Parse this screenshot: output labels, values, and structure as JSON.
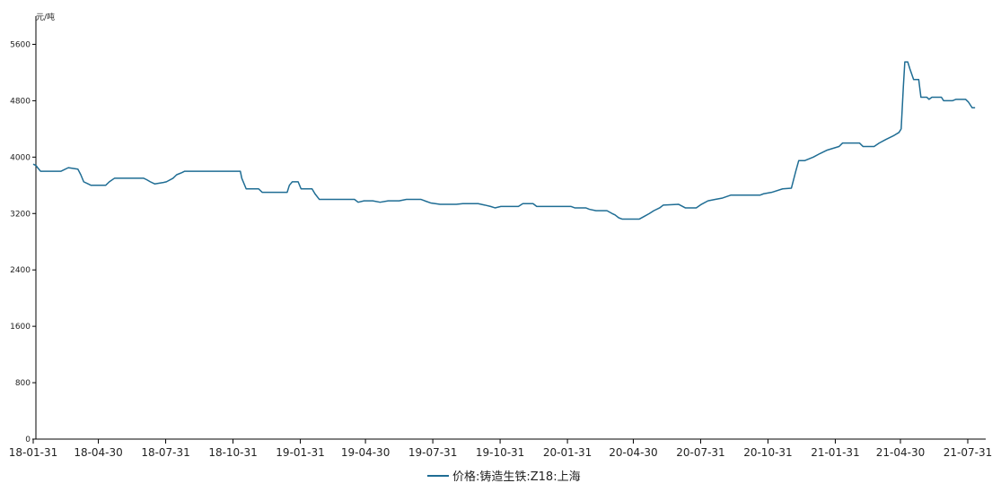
{
  "chart_data": {
    "type": "line",
    "y_unit": "元/吨",
    "ylim": [
      0,
      6000
    ],
    "y_ticks": [
      0,
      800,
      1600,
      2400,
      3200,
      4000,
      4800,
      5600
    ],
    "x_tick_labels": [
      "18-01-31",
      "18-04-30",
      "18-07-31",
      "18-10-31",
      "19-01-31",
      "19-04-30",
      "19-07-31",
      "19-10-31",
      "20-01-31",
      "20-04-30",
      "20-07-31",
      "20-10-31",
      "21-01-31",
      "21-04-30",
      "21-07-31"
    ],
    "grid": false,
    "legend_position": "bottom-center",
    "series": [
      {
        "name": "价格:铸造生铁:Z18:上海",
        "color": "#1f6d94",
        "points": [
          [
            "2018-01-31",
            3900
          ],
          [
            "2018-02-04",
            3880
          ],
          [
            "2018-02-06",
            3850
          ],
          [
            "2018-02-10",
            3800
          ],
          [
            "2018-03-10",
            3800
          ],
          [
            "2018-03-20",
            3850
          ],
          [
            "2018-04-02",
            3830
          ],
          [
            "2018-04-06",
            3750
          ],
          [
            "2018-04-10",
            3650
          ],
          [
            "2018-04-16",
            3620
          ],
          [
            "2018-04-20",
            3600
          ],
          [
            "2018-05-10",
            3600
          ],
          [
            "2018-05-15",
            3650
          ],
          [
            "2018-05-22",
            3700
          ],
          [
            "2018-07-01",
            3700
          ],
          [
            "2018-07-05",
            3680
          ],
          [
            "2018-07-10",
            3650
          ],
          [
            "2018-07-16",
            3620
          ],
          [
            "2018-07-28",
            3640
          ],
          [
            "2018-08-01",
            3650
          ],
          [
            "2018-08-10",
            3700
          ],
          [
            "2018-08-15",
            3750
          ],
          [
            "2018-08-22",
            3780
          ],
          [
            "2018-08-26",
            3800
          ],
          [
            "2018-11-10",
            3800
          ],
          [
            "2018-11-12",
            3700
          ],
          [
            "2018-11-18",
            3550
          ],
          [
            "2018-12-05",
            3550
          ],
          [
            "2018-12-10",
            3500
          ],
          [
            "2019-01-13",
            3500
          ],
          [
            "2019-01-16",
            3600
          ],
          [
            "2019-01-20",
            3650
          ],
          [
            "2019-01-28",
            3650
          ],
          [
            "2019-02-01",
            3550
          ],
          [
            "2019-02-16",
            3550
          ],
          [
            "2019-02-20",
            3480
          ],
          [
            "2019-02-26",
            3400
          ],
          [
            "2019-04-15",
            3400
          ],
          [
            "2019-04-20",
            3360
          ],
          [
            "2019-04-28",
            3380
          ],
          [
            "2019-05-10",
            3380
          ],
          [
            "2019-05-20",
            3360
          ],
          [
            "2019-05-31",
            3380
          ],
          [
            "2019-06-15",
            3380
          ],
          [
            "2019-06-25",
            3400
          ],
          [
            "2019-07-15",
            3400
          ],
          [
            "2019-07-20",
            3380
          ],
          [
            "2019-07-28",
            3350
          ],
          [
            "2019-08-10",
            3330
          ],
          [
            "2019-09-01",
            3330
          ],
          [
            "2019-09-10",
            3340
          ],
          [
            "2019-10-01",
            3340
          ],
          [
            "2019-10-10",
            3320
          ],
          [
            "2019-10-18",
            3300
          ],
          [
            "2019-10-24",
            3280
          ],
          [
            "2019-11-01",
            3300
          ],
          [
            "2019-11-25",
            3300
          ],
          [
            "2019-12-01",
            3340
          ],
          [
            "2019-12-15",
            3340
          ],
          [
            "2019-12-20",
            3300
          ],
          [
            "2020-02-05",
            3300
          ],
          [
            "2020-02-10",
            3280
          ],
          [
            "2020-02-25",
            3280
          ],
          [
            "2020-03-01",
            3260
          ],
          [
            "2020-03-10",
            3240
          ],
          [
            "2020-03-25",
            3240
          ],
          [
            "2020-04-01",
            3200
          ],
          [
            "2020-04-05",
            3180
          ],
          [
            "2020-04-10",
            3140
          ],
          [
            "2020-04-15",
            3120
          ],
          [
            "2020-05-08",
            3120
          ],
          [
            "2020-05-15",
            3160
          ],
          [
            "2020-05-22",
            3200
          ],
          [
            "2020-05-28",
            3240
          ],
          [
            "2020-06-05",
            3280
          ],
          [
            "2020-06-10",
            3320
          ],
          [
            "2020-07-01",
            3330
          ],
          [
            "2020-07-10",
            3280
          ],
          [
            "2020-07-25",
            3280
          ],
          [
            "2020-08-01",
            3330
          ],
          [
            "2020-08-10",
            3380
          ],
          [
            "2020-08-20",
            3400
          ],
          [
            "2020-08-30",
            3420
          ],
          [
            "2020-09-10",
            3460
          ],
          [
            "2020-10-20",
            3460
          ],
          [
            "2020-10-25",
            3480
          ],
          [
            "2020-11-05",
            3500
          ],
          [
            "2020-11-20",
            3550
          ],
          [
            "2020-12-02",
            3560
          ],
          [
            "2020-12-08",
            3800
          ],
          [
            "2020-12-12",
            3950
          ],
          [
            "2020-12-20",
            3950
          ],
          [
            "2021-01-01",
            4000
          ],
          [
            "2021-01-10",
            4050
          ],
          [
            "2021-01-20",
            4100
          ],
          [
            "2021-02-05",
            4150
          ],
          [
            "2021-02-10",
            4200
          ],
          [
            "2021-03-05",
            4200
          ],
          [
            "2021-03-10",
            4150
          ],
          [
            "2021-03-25",
            4150
          ],
          [
            "2021-04-01",
            4200
          ],
          [
            "2021-04-10",
            4250
          ],
          [
            "2021-04-20",
            4300
          ],
          [
            "2021-04-28",
            4350
          ],
          [
            "2021-05-01",
            4400
          ],
          [
            "2021-05-04",
            5000
          ],
          [
            "2021-05-06",
            5350
          ],
          [
            "2021-05-10",
            5350
          ],
          [
            "2021-05-13",
            5250
          ],
          [
            "2021-05-18",
            5100
          ],
          [
            "2021-05-25",
            5100
          ],
          [
            "2021-05-28",
            4850
          ],
          [
            "2021-06-05",
            4850
          ],
          [
            "2021-06-08",
            4820
          ],
          [
            "2021-06-12",
            4850
          ],
          [
            "2021-06-25",
            4850
          ],
          [
            "2021-06-28",
            4800
          ],
          [
            "2021-07-10",
            4800
          ],
          [
            "2021-07-15",
            4820
          ],
          [
            "2021-07-28",
            4820
          ],
          [
            "2021-08-01",
            4780
          ],
          [
            "2021-08-06",
            4700
          ],
          [
            "2021-08-10",
            4700
          ]
        ]
      }
    ]
  }
}
